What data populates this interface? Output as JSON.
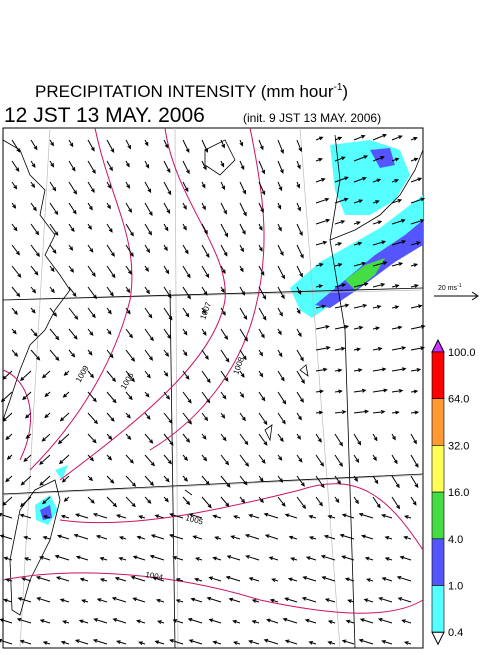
{
  "header": {
    "title": "PRECIPITATION INTENSITY (mm hour",
    "title_sup": "-1",
    "title_close": ")",
    "time": "12 JST 13 MAY. 2006",
    "init": "(init. 9 JST 13 MAY. 2006)"
  },
  "scale": {
    "label": "20 ms",
    "sup": "-1"
  },
  "isobars": {
    "labels": [
      "1009",
      "1006",
      "1007",
      "1008",
      "1005",
      "1004"
    ]
  },
  "colorbar": {
    "labels": [
      "100.0",
      "64.0",
      "32.0",
      "16.0",
      "4.0",
      "1.0",
      "0.4"
    ],
    "colors": [
      "#ff0000",
      "#ff9933",
      "#ffff55",
      "#44dd44",
      "#5555ff",
      "#55ffff"
    ],
    "over_color": "#cc33ff",
    "under_color": "#ffffff"
  }
}
